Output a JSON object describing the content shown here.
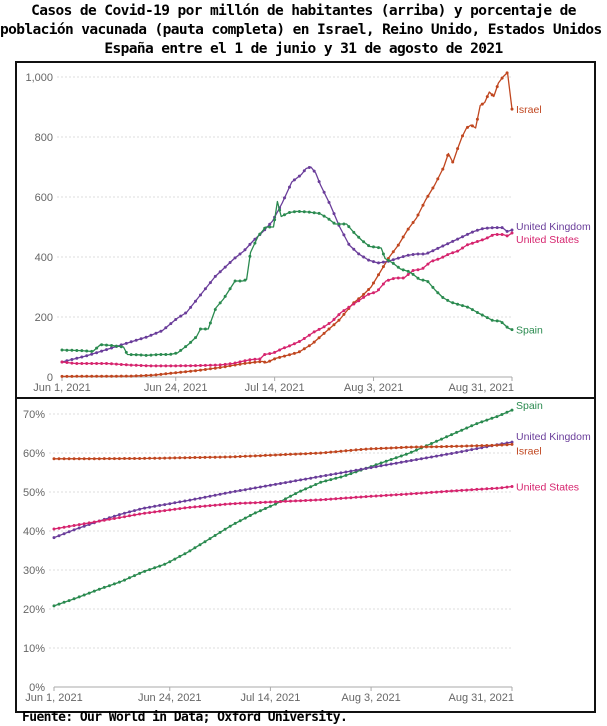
{
  "title_lines": [
    "Casos de Covid-19 por millón de habitantes (arriba) y porcentaje de",
    "población vacunada (pauta completa) en Israel, Reino Unido, Estados Unidos y",
    "España entre el 1 de junio y 31 de agosto de 2021"
  ],
  "source": "Fuente: Our World in Data; Oxford University.",
  "colors": {
    "Israel": "#c0461f",
    "United Kingdom": "#6a3d9a",
    "United States": "#d6246e",
    "Spain": "#2a8a4f",
    "grid": "#dddddd",
    "tick": "#666666"
  },
  "chart_data": [
    {
      "type": "line",
      "title": "Casos de Covid-19 por millón de habitantes",
      "x_unit": "days since Jun 1, 2021",
      "x_range": [
        0,
        91
      ],
      "x_ticks": [
        {
          "day": 0,
          "label": "Jun 1, 2021"
        },
        {
          "day": 23,
          "label": "Jun 24, 2021"
        },
        {
          "day": 43,
          "label": "Jul 14, 2021"
        },
        {
          "day": 63,
          "label": "Aug 3, 2021"
        },
        {
          "day": 91,
          "label": "Aug 31, 2021"
        }
      ],
      "ylim": [
        0,
        1000
      ],
      "y_ticks": [
        {
          "value": 0,
          "label": "0"
        },
        {
          "value": 200,
          "label": "200"
        },
        {
          "value": 400,
          "label": "400"
        },
        {
          "value": 600,
          "label": "600"
        },
        {
          "value": 800,
          "label": "800"
        },
        {
          "value": 1000,
          "label": "1,000"
        }
      ],
      "grid": true,
      "legend": "inline-right",
      "series": [
        {
          "name": "Israel",
          "label": "Israel",
          "points": [
            [
              0,
              2
            ],
            [
              15,
              3
            ],
            [
              20,
              6
            ],
            [
              25,
              14
            ],
            [
              30,
              22
            ],
            [
              35,
              32
            ],
            [
              40,
              45
            ],
            [
              44,
              52
            ],
            [
              45,
              48
            ],
            [
              47,
              62
            ],
            [
              52,
              82
            ],
            [
              55,
              110
            ],
            [
              58,
              150
            ],
            [
              61,
              190
            ],
            [
              64,
              245
            ],
            [
              66,
              270
            ],
            [
              68,
              300
            ],
            [
              70,
              350
            ],
            [
              72,
              400
            ],
            [
              74,
              440
            ],
            [
              76,
              490
            ],
            [
              78,
              530
            ],
            [
              80,
              590
            ],
            [
              82,
              640
            ],
            [
              84,
              700
            ],
            [
              85,
              745
            ],
            [
              86,
              715
            ],
            [
              87,
              760
            ],
            [
              88,
              800
            ],
            [
              89,
              830
            ],
            [
              90,
              840
            ],
            [
              91,
              830
            ],
            [
              92,
              905
            ],
            [
              93,
              915
            ],
            [
              94,
              950
            ],
            [
              95,
              935
            ],
            [
              96,
              980
            ],
            [
              97,
              1000
            ],
            [
              98,
              1015
            ],
            [
              99,
              893
            ]
          ]
        },
        {
          "name": "United Kingdom",
          "label": "United Kingdom",
          "points": [
            [
              0,
              50
            ],
            [
              5,
              70
            ],
            [
              10,
              95
            ],
            [
              15,
              120
            ],
            [
              18,
              135
            ],
            [
              21,
              155
            ],
            [
              24,
              195
            ],
            [
              26,
              215
            ],
            [
              28,
              255
            ],
            [
              30,
              295
            ],
            [
              32,
              335
            ],
            [
              34,
              365
            ],
            [
              36,
              395
            ],
            [
              38,
              420
            ],
            [
              40,
              455
            ],
            [
              42,
              485
            ],
            [
              44,
              520
            ],
            [
              46,
              580
            ],
            [
              48,
              650
            ],
            [
              50,
              675
            ],
            [
              51,
              695
            ],
            [
              52,
              700
            ],
            [
              53,
              680
            ],
            [
              54,
              640
            ],
            [
              56,
              575
            ],
            [
              58,
              500
            ],
            [
              60,
              440
            ],
            [
              62,
              410
            ],
            [
              64,
              390
            ],
            [
              66,
              380
            ],
            [
              68,
              385
            ],
            [
              70,
              395
            ],
            [
              72,
              405
            ],
            [
              74,
              410
            ],
            [
              76,
              410
            ],
            [
              78,
              425
            ],
            [
              80,
              440
            ],
            [
              82,
              455
            ],
            [
              84,
              470
            ],
            [
              86,
              485
            ],
            [
              88,
              495
            ],
            [
              90,
              498
            ],
            [
              92,
              498
            ],
            [
              93,
              485
            ],
            [
              94,
              490
            ]
          ]
        },
        {
          "name": "United States",
          "label": "United States",
          "points": [
            [
              0,
              50
            ],
            [
              3,
              45
            ],
            [
              6,
              45
            ],
            [
              10,
              45
            ],
            [
              15,
              40
            ],
            [
              20,
              37
            ],
            [
              25,
              37
            ],
            [
              30,
              38
            ],
            [
              35,
              40
            ],
            [
              38,
              45
            ],
            [
              40,
              52
            ],
            [
              42,
              58
            ],
            [
              44,
              60
            ],
            [
              45,
              75
            ],
            [
              47,
              80
            ],
            [
              49,
              95
            ],
            [
              50,
              100
            ],
            [
              53,
              120
            ],
            [
              56,
              150
            ],
            [
              58,
              165
            ],
            [
              60,
              185
            ],
            [
              62,
              215
            ],
            [
              64,
              235
            ],
            [
              66,
              255
            ],
            [
              68,
              275
            ],
            [
              70,
              285
            ],
            [
              72,
              320
            ],
            [
              74,
              330
            ],
            [
              76,
              330
            ],
            [
              78,
              355
            ],
            [
              80,
              360
            ],
            [
              82,
              385
            ],
            [
              84,
              395
            ],
            [
              86,
              410
            ],
            [
              88,
              420
            ],
            [
              90,
              440
            ],
            [
              92,
              450
            ],
            [
              94,
              460
            ],
            [
              96,
              475
            ],
            [
              98,
              475
            ],
            [
              99,
              470
            ],
            [
              100,
              480
            ]
          ]
        },
        {
          "name": "Spain",
          "label": "Spain",
          "points": [
            [
              0,
              90
            ],
            [
              5,
              88
            ],
            [
              8,
              85
            ],
            [
              10,
              108
            ],
            [
              13,
              105
            ],
            [
              16,
              100
            ],
            [
              17,
              75
            ],
            [
              20,
              74
            ],
            [
              22,
              72
            ],
            [
              25,
              75
            ],
            [
              28,
              75
            ],
            [
              30,
              80
            ],
            [
              32,
              100
            ],
            [
              33,
              110
            ],
            [
              35,
              135
            ],
            [
              36,
              160
            ],
            [
              38,
              160
            ],
            [
              40,
              230
            ],
            [
              42,
              260
            ],
            [
              44,
              300
            ],
            [
              45,
              320
            ],
            [
              47,
              320
            ],
            [
              48,
              325
            ],
            [
              49,
              415
            ],
            [
              51,
              470
            ],
            [
              53,
              500
            ],
            [
              55,
              500
            ],
            [
              56,
              585
            ],
            [
              57,
              535
            ],
            [
              59,
              548
            ],
            [
              61,
              552
            ],
            [
              64,
              550
            ],
            [
              67,
              545
            ],
            [
              69,
              530
            ],
            [
              71,
              510
            ],
            [
              74,
              510
            ],
            [
              76,
              480
            ],
            [
              78,
              455
            ],
            [
              80,
              435
            ],
            [
              82,
              432
            ],
            [
              83,
              430
            ],
            [
              84,
              395
            ],
            [
              86,
              380
            ],
            [
              88,
              360
            ],
            [
              90,
              352
            ],
            [
              91,
              345
            ],
            [
              93,
              325
            ],
            [
              95,
              320
            ],
            [
              97,
              290
            ],
            [
              99,
              265
            ],
            [
              101,
              250
            ],
            [
              103,
              242
            ],
            [
              105,
              235
            ],
            [
              106,
              230
            ],
            [
              108,
              215
            ],
            [
              110,
              202
            ],
            [
              112,
              188
            ],
            [
              114,
              186
            ],
            [
              115,
              175
            ],
            [
              116,
              163
            ],
            [
              117,
              158
            ]
          ]
        }
      ]
    },
    {
      "type": "line",
      "title": "Porcentaje de población vacunada (pauta completa)",
      "x_unit": "days since Jun 1, 2021",
      "x_range": [
        0,
        91
      ],
      "x_ticks": [
        {
          "day": 0,
          "label": "Jun 1, 2021"
        },
        {
          "day": 23,
          "label": "Jun 24, 2021"
        },
        {
          "day": 43,
          "label": "Jul 14, 2021"
        },
        {
          "day": 63,
          "label": "Aug 3, 2021"
        },
        {
          "day": 91,
          "label": "Aug 31, 2021"
        }
      ],
      "ylim": [
        0,
        70
      ],
      "y_ticks": [
        {
          "value": 0,
          "label": "0%"
        },
        {
          "value": 10,
          "label": "10%"
        },
        {
          "value": 20,
          "label": "20%"
        },
        {
          "value": 30,
          "label": "30%"
        },
        {
          "value": 40,
          "label": "40%"
        },
        {
          "value": 50,
          "label": "50%"
        },
        {
          "value": 60,
          "label": "60%"
        },
        {
          "value": 70,
          "label": "70%"
        }
      ],
      "grid": true,
      "legend": "inline-right",
      "series": [
        {
          "name": "Spain",
          "label": "Spain",
          "points": [
            [
              0,
              20.8
            ],
            [
              5,
              22.8
            ],
            [
              10,
              25
            ],
            [
              15,
              27
            ],
            [
              20,
              29.5
            ],
            [
              25,
              31.5
            ],
            [
              30,
              34.5
            ],
            [
              35,
              38
            ],
            [
              40,
              41.5
            ],
            [
              45,
              44.5
            ],
            [
              50,
              47
            ],
            [
              55,
              50
            ],
            [
              60,
              52.5
            ],
            [
              65,
              54
            ],
            [
              70,
              56
            ],
            [
              75,
              58
            ],
            [
              80,
              60
            ],
            [
              85,
              62.5
            ],
            [
              90,
              65
            ],
            [
              95,
              67.5
            ],
            [
              100,
              69.5
            ],
            [
              103,
              71
            ]
          ]
        },
        {
          "name": "United Kingdom",
          "label": "United Kingdom",
          "points": [
            [
              0,
              38.3
            ],
            [
              5,
              40.5
            ],
            [
              10,
              42.5
            ],
            [
              15,
              44.3
            ],
            [
              20,
              45.8
            ],
            [
              30,
              47.8
            ],
            [
              40,
              50
            ],
            [
              50,
              52
            ],
            [
              60,
              54
            ],
            [
              70,
              56
            ],
            [
              80,
              58
            ],
            [
              90,
              60
            ],
            [
              100,
              62.2
            ],
            [
              103,
              62.8
            ]
          ]
        },
        {
          "name": "Israel",
          "label": "Israel",
          "points": [
            [
              0,
              58.5
            ],
            [
              20,
              58.6
            ],
            [
              40,
              59
            ],
            [
              60,
              60
            ],
            [
              70,
              61
            ],
            [
              80,
              61.5
            ],
            [
              90,
              61.7
            ],
            [
              100,
              62
            ],
            [
              103,
              62.2
            ]
          ]
        },
        {
          "name": "United States",
          "label": "United States",
          "points": [
            [
              0,
              40.5
            ],
            [
              10,
              42.5
            ],
            [
              20,
              44.5
            ],
            [
              30,
              46
            ],
            [
              40,
              47
            ],
            [
              50,
              47.5
            ],
            [
              60,
              48
            ],
            [
              70,
              48.8
            ],
            [
              80,
              49.5
            ],
            [
              90,
              50.3
            ],
            [
              100,
              51
            ],
            [
              103,
              51.4
            ]
          ]
        }
      ]
    }
  ]
}
